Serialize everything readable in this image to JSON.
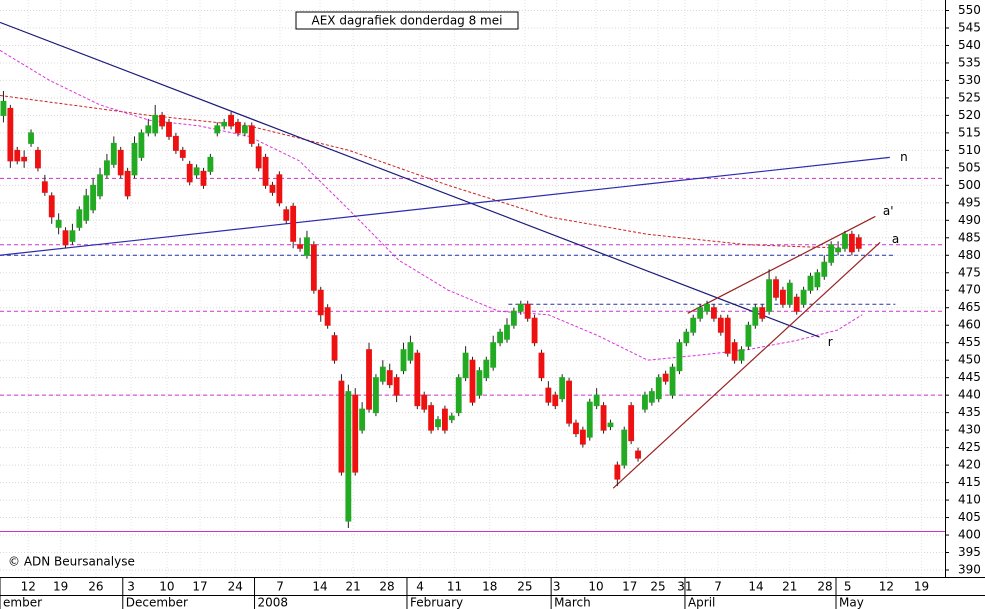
{
  "chart_data": {
    "type": "candlestick",
    "title": "AEX dagrafiek donderdag 8 mei",
    "copyright": "© ADN Beursanalyse",
    "up_color": "#22aa22",
    "down_color": "#ee1111",
    "xlim": [
      -0.5,
      136.5
    ],
    "ylim": [
      388,
      553
    ],
    "yticks": [
      390,
      395,
      400,
      405,
      410,
      415,
      420,
      425,
      430,
      435,
      440,
      445,
      450,
      455,
      460,
      465,
      470,
      475,
      480,
      485,
      490,
      495,
      500,
      505,
      510,
      515,
      520,
      525,
      530,
      535,
      540,
      545,
      550
    ],
    "xticks": [
      {
        "value": 3.6,
        "label": "12"
      },
      {
        "value": 8.3,
        "label": "19"
      },
      {
        "value": 13.4,
        "label": "26"
      },
      {
        "value": 18.5,
        "label": "3"
      },
      {
        "value": 23.7,
        "label": "10"
      },
      {
        "value": 28.5,
        "label": "17"
      },
      {
        "value": 33.6,
        "label": "24"
      },
      {
        "value": 40.1,
        "label": "7"
      },
      {
        "value": 45.9,
        "label": "14"
      },
      {
        "value": 50.7,
        "label": "21"
      },
      {
        "value": 55.6,
        "label": "28"
      },
      {
        "value": 60.4,
        "label": "4"
      },
      {
        "value": 65.4,
        "label": "11"
      },
      {
        "value": 70.5,
        "label": "18"
      },
      {
        "value": 75.6,
        "label": "25"
      },
      {
        "value": 80.2,
        "label": "3"
      },
      {
        "value": 85.9,
        "label": "10"
      },
      {
        "value": 90.8,
        "label": "17"
      },
      {
        "value": 94.9,
        "label": "25"
      },
      {
        "value": 98.8,
        "label": "31"
      },
      {
        "value": 103.6,
        "label": "7"
      },
      {
        "value": 109.1,
        "label": "14"
      },
      {
        "value": 114,
        "label": "21"
      },
      {
        "value": 119.1,
        "label": "28"
      },
      {
        "value": 122.4,
        "label": "5"
      },
      {
        "value": 128,
        "label": "12"
      },
      {
        "value": 133.1,
        "label": "19"
      }
    ],
    "month_ticks": [
      {
        "value": -0.5,
        "label": "ember"
      },
      {
        "value": 17.3,
        "label": "December"
      },
      {
        "value": 36.4,
        "label": "2008"
      },
      {
        "value": 58.5,
        "label": "February"
      },
      {
        "value": 79.4,
        "label": "March"
      },
      {
        "value": 98.8,
        "label": "April"
      },
      {
        "value": 120.7,
        "label": "May"
      }
    ],
    "open": [
      520,
      522,
      510,
      508,
      512,
      510,
      501,
      497,
      488,
      487,
      484,
      488,
      490,
      493,
      497,
      503,
      506,
      510,
      504,
      503,
      508,
      515,
      515,
      520,
      518,
      514,
      510,
      506,
      503,
      504,
      504,
      515,
      517,
      520,
      518,
      515,
      517,
      511,
      508,
      500,
      503,
      493,
      494,
      483,
      480,
      483,
      470,
      465,
      457,
      444,
      404,
      440,
      430,
      453,
      435,
      444,
      447,
      445,
      447,
      450,
      452,
      440,
      437,
      431,
      436,
      433,
      435,
      445,
      450,
      440,
      445,
      448,
      455,
      456,
      460,
      464,
      466,
      462,
      452,
      442,
      440,
      439,
      444,
      432,
      430,
      428,
      437,
      437,
      431,
      420,
      420,
      437,
      424,
      436,
      438,
      439,
      446,
      440,
      447,
      455,
      458,
      462,
      464,
      465,
      462,
      462,
      455,
      450,
      454,
      460,
      465,
      464,
      473,
      470,
      466,
      468,
      466,
      470,
      471,
      474,
      478,
      481,
      482,
      486,
      485
    ],
    "high": [
      527,
      523,
      511,
      510,
      516,
      511,
      503,
      498,
      492,
      488,
      489,
      494,
      499,
      502,
      505,
      509,
      514,
      511,
      505,
      514,
      516,
      519,
      523,
      521,
      519,
      515,
      511,
      507,
      506,
      505,
      509,
      518,
      519,
      521,
      519,
      518,
      518,
      512,
      509,
      501,
      504,
      494,
      495,
      485,
      487,
      484,
      471,
      466,
      458,
      446,
      443,
      442,
      438,
      455,
      446,
      450,
      449,
      446,
      455,
      457,
      453,
      441,
      438,
      434,
      437,
      435,
      446,
      454,
      451,
      448,
      451,
      457,
      459,
      462,
      465,
      467,
      467,
      463,
      453,
      444,
      441,
      446,
      445,
      433,
      431,
      439,
      442,
      438,
      433,
      421,
      431,
      438,
      425,
      441,
      442,
      446,
      447,
      449,
      456,
      459,
      463,
      466,
      467,
      466,
      463,
      463,
      456,
      454,
      461,
      466,
      466,
      476,
      474,
      471,
      473,
      469,
      471,
      475,
      476,
      480,
      484,
      484,
      487,
      487,
      486
    ],
    "low": [
      518,
      505,
      506,
      505,
      511,
      504,
      497,
      489,
      486,
      482,
      483,
      487,
      489,
      492,
      496,
      502,
      505,
      502,
      496,
      502,
      507,
      514,
      514,
      516,
      513,
      509,
      507,
      500,
      502,
      499,
      503,
      514,
      516,
      516,
      514,
      514,
      511,
      504,
      499,
      497,
      494,
      489,
      482,
      481,
      479,
      469,
      461,
      459,
      449,
      417,
      402,
      417,
      429,
      435,
      434,
      443,
      442,
      438,
      446,
      449,
      436,
      435,
      429,
      430,
      429,
      432,
      434,
      444,
      437,
      439,
      444,
      447,
      454,
      455,
      459,
      463,
      461,
      454,
      444,
      437,
      436,
      438,
      431,
      428,
      425,
      427,
      436,
      429,
      430,
      414,
      419,
      426,
      421,
      435,
      437,
      438,
      443,
      439,
      446,
      454,
      457,
      461,
      463,
      461,
      457,
      451,
      449,
      449,
      453,
      459,
      461,
      463,
      467,
      465,
      465,
      463,
      465,
      469,
      470,
      473,
      477,
      480,
      481,
      480,
      481
    ],
    "close": [
      524,
      507,
      507,
      507,
      515,
      505,
      498,
      491,
      490,
      483,
      487,
      493,
      497,
      500,
      503,
      507,
      512,
      503,
      497,
      512,
      515,
      517,
      520,
      517,
      514,
      510,
      508,
      501,
      505,
      500,
      508,
      517,
      518,
      517,
      515,
      517,
      512,
      505,
      500,
      498,
      495,
      490,
      484,
      482,
      485,
      470,
      463,
      460,
      450,
      418,
      441,
      418,
      436,
      436,
      445,
      448,
      443,
      440,
      453,
      455,
      437,
      436,
      430,
      433,
      430,
      434,
      445,
      452,
      438,
      447,
      450,
      455,
      458,
      460,
      464,
      466,
      462,
      455,
      445,
      438,
      437,
      445,
      432,
      429,
      426,
      438,
      440,
      430,
      432,
      416,
      430,
      427,
      422,
      440,
      441,
      445,
      444,
      448,
      455,
      458,
      462,
      465,
      466,
      462,
      458,
      452,
      450,
      453,
      460,
      465,
      462,
      473,
      468,
      466,
      472,
      464,
      470,
      474,
      475,
      478,
      483,
      482,
      486,
      481,
      482
    ],
    "moving_averages": [
      {
        "color": "#cc2222",
        "x": [
          -0.5,
          21.2,
          35.6,
          50.1,
          64.5,
          79,
          93.4,
          107.9,
          122.3
        ],
        "y": [
          525.7,
          520,
          517,
          510,
          500,
          491,
          486,
          483,
          482
        ]
      },
      {
        "color": "#dd33dd",
        "x": [
          -0.5,
          6.7,
          14,
          21.2,
          28.4,
          35.6,
          42.9,
          50.1,
          57.3,
          64.5,
          71.8,
          79,
          86.2,
          93.4,
          100.7,
          107.9,
          115.1,
          120.9,
          124.5
        ],
        "y": [
          538.6,
          530,
          523,
          518.6,
          517,
          514,
          507,
          493,
          478.6,
          470,
          464,
          463,
          457,
          450,
          451.4,
          453,
          455.7,
          458.6,
          463
        ]
      }
    ],
    "trendlines": [
      {
        "color": "#1a1a7a",
        "x": [
          -0.5,
          118.3
        ],
        "y": [
          546.6,
          456.6
        ]
      },
      {
        "color": "#2a2ab0",
        "x": [
          -0.5,
          128.5
        ],
        "y": [
          480,
          508
        ]
      },
      {
        "color": "#992222",
        "x": [
          99.2,
          126.4
        ],
        "y": [
          463.4,
          491.1
        ]
      },
      {
        "color": "#992222",
        "x": [
          88.4,
          127.1
        ],
        "y": [
          413.4,
          483.7
        ]
      }
    ],
    "hlines": [
      {
        "value": 502,
        "color": "#cc33cc",
        "dash": true,
        "x": [
          -0.5,
          136.5
        ]
      },
      {
        "value": 483,
        "color": "#cc33cc",
        "dash": true,
        "x": [
          -0.5,
          136.5
        ]
      },
      {
        "value": 480,
        "color": "#2233aa",
        "dash": true,
        "x": [
          -0.5,
          129.3
        ]
      },
      {
        "value": 466,
        "color": "#2233aa",
        "dash": true,
        "x": [
          73.2,
          129.3
        ]
      },
      {
        "value": 464,
        "color": "#cc33cc",
        "dash": true,
        "x": [
          -0.5,
          136.5
        ]
      },
      {
        "value": 440,
        "color": "#cc33cc",
        "dash": true,
        "x": [
          -0.5,
          136.5
        ]
      },
      {
        "value": 401,
        "color": "#cc33cc",
        "dash": false,
        "x": [
          -0.5,
          136.5
        ]
      }
    ],
    "annotations": [
      {
        "text": "n",
        "x": 130,
        "y": 508,
        "color": "#2a2ab0"
      },
      {
        "text": "a'",
        "x": 127.5,
        "y": 492.5,
        "color": "#992222"
      },
      {
        "text": "a",
        "x": 128.8,
        "y": 484.5,
        "color": "#992222"
      },
      {
        "text": "r",
        "x": 119.5,
        "y": 455,
        "color": "#2233aa"
      }
    ]
  }
}
